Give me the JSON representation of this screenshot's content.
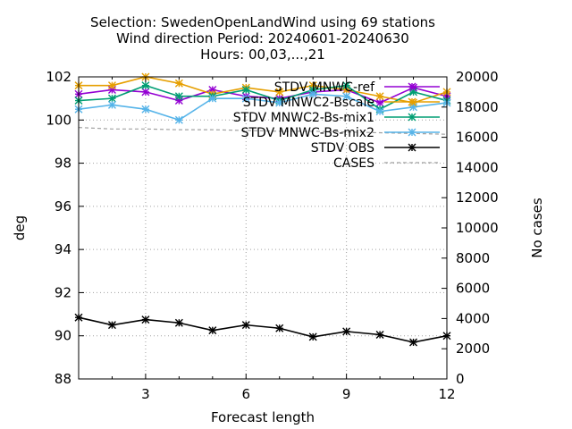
{
  "chart_data": {
    "type": "line",
    "title": [
      "Selection: SwedenOpenLandWind using    69 stations",
      "Wind direction   Period: 20240601-20240630",
      "Hours: 00,03,...,21"
    ],
    "xlabel": "Forecast length",
    "ylabel": "deg",
    "y2label": "No cases",
    "xlim": [
      1,
      12
    ],
    "ylim": [
      88,
      102
    ],
    "y2lim": [
      0,
      20000
    ],
    "xticks": [
      3,
      6,
      9,
      12
    ],
    "yticks": [
      88,
      90,
      92,
      94,
      96,
      98,
      100,
      102
    ],
    "y2ticks": [
      0,
      2000,
      4000,
      6000,
      8000,
      10000,
      12000,
      14000,
      16000,
      18000,
      20000
    ],
    "grid": true,
    "legend_position": "top-right",
    "x": [
      1,
      2,
      3,
      4,
      5,
      6,
      7,
      8,
      9,
      10,
      11,
      12
    ],
    "series": [
      {
        "name": "STDV MNWC-ref",
        "color": "#9400d3",
        "marker": "plus-x",
        "axis": "y",
        "values": [
          101.2,
          101.4,
          101.3,
          100.9,
          101.4,
          101.1,
          101.0,
          101.3,
          101.4,
          100.8,
          101.5,
          101.1
        ]
      },
      {
        "name": "STDV MNWC2-Bscale",
        "color": "#e69f00",
        "marker": "plus-x",
        "axis": "y",
        "values": [
          101.6,
          101.6,
          102.0,
          101.7,
          101.2,
          101.5,
          101.3,
          101.6,
          101.4,
          101.1,
          100.8,
          101.3
        ]
      },
      {
        "name": "STDV MNWC2-Bs-mix1",
        "color": "#009e73",
        "marker": "plus-x",
        "axis": "y",
        "values": [
          100.9,
          101.0,
          101.6,
          101.1,
          101.1,
          101.4,
          100.9,
          101.4,
          101.6,
          100.5,
          101.3,
          100.9
        ]
      },
      {
        "name": "STDV MNWC-Bs-mix2",
        "color": "#56b4e9",
        "marker": "plus-x",
        "axis": "y",
        "values": [
          100.5,
          100.7,
          100.5,
          100.0,
          101.0,
          101.0,
          100.8,
          101.2,
          101.1,
          100.4,
          100.6,
          100.8
        ]
      },
      {
        "name": "STDV OBS",
        "color": "#000000",
        "marker": "plus-x",
        "axis": "y",
        "values": [
          90.85,
          90.5,
          90.75,
          90.6,
          90.25,
          90.5,
          90.35,
          89.95,
          90.2,
          90.05,
          89.7,
          90.0
        ]
      },
      {
        "name": "CASES",
        "color": "#a0a0a0",
        "marker": "none",
        "dash": true,
        "axis": "y2",
        "values": [
          16650,
          16550,
          16550,
          16500,
          16500,
          16450,
          16400,
          16400,
          16350,
          16300,
          16250,
          16200
        ]
      }
    ]
  }
}
